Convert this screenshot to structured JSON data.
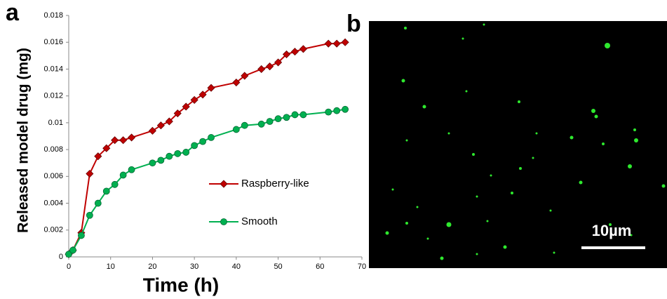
{
  "chart_data": {
    "type": "line",
    "panel_label": "a",
    "xlabel": "Time (h)",
    "ylabel": "Released model drug (mg)",
    "x": [
      0,
      1,
      3,
      5,
      7,
      9,
      11,
      13,
      15,
      20,
      22,
      24,
      26,
      28,
      30,
      32,
      34,
      40,
      42,
      46,
      48,
      50,
      52,
      54,
      56,
      62,
      64,
      66
    ],
    "series": [
      {
        "name": "Raspberry-like",
        "color": "#c00000",
        "marker": "diamond",
        "values": [
          0.0002,
          0.0005,
          0.0018,
          0.0062,
          0.0075,
          0.0081,
          0.0087,
          0.0087,
          0.0089,
          0.0094,
          0.0098,
          0.0101,
          0.0107,
          0.0112,
          0.0117,
          0.0121,
          0.0126,
          0.013,
          0.0135,
          0.014,
          0.0142,
          0.0145,
          0.0151,
          0.0153,
          0.0155,
          0.0159,
          0.0159,
          0.016
        ]
      },
      {
        "name": "Smooth",
        "color": "#00b050",
        "marker": "circle",
        "values": [
          0.0002,
          0.0005,
          0.0016,
          0.0031,
          0.004,
          0.0049,
          0.0054,
          0.0061,
          0.0065,
          0.007,
          0.0072,
          0.0075,
          0.0077,
          0.0078,
          0.0083,
          0.0086,
          0.0089,
          0.0095,
          0.0098,
          0.0099,
          0.0101,
          0.0103,
          0.0104,
          0.0106,
          0.0106,
          0.0108,
          0.0109,
          0.011
        ]
      }
    ],
    "xlim": [
      0,
      70
    ],
    "xticks": [
      0,
      10,
      20,
      30,
      40,
      50,
      60,
      70
    ],
    "ylim": [
      0,
      0.018
    ],
    "yticks": [
      0,
      0.002,
      0.004,
      0.006,
      0.008,
      0.01,
      0.012,
      0.014,
      0.016,
      0.018
    ],
    "grid": false,
    "legend": "center-right"
  },
  "image_panel": {
    "panel_label": "b",
    "scale_bar": "10µm"
  }
}
